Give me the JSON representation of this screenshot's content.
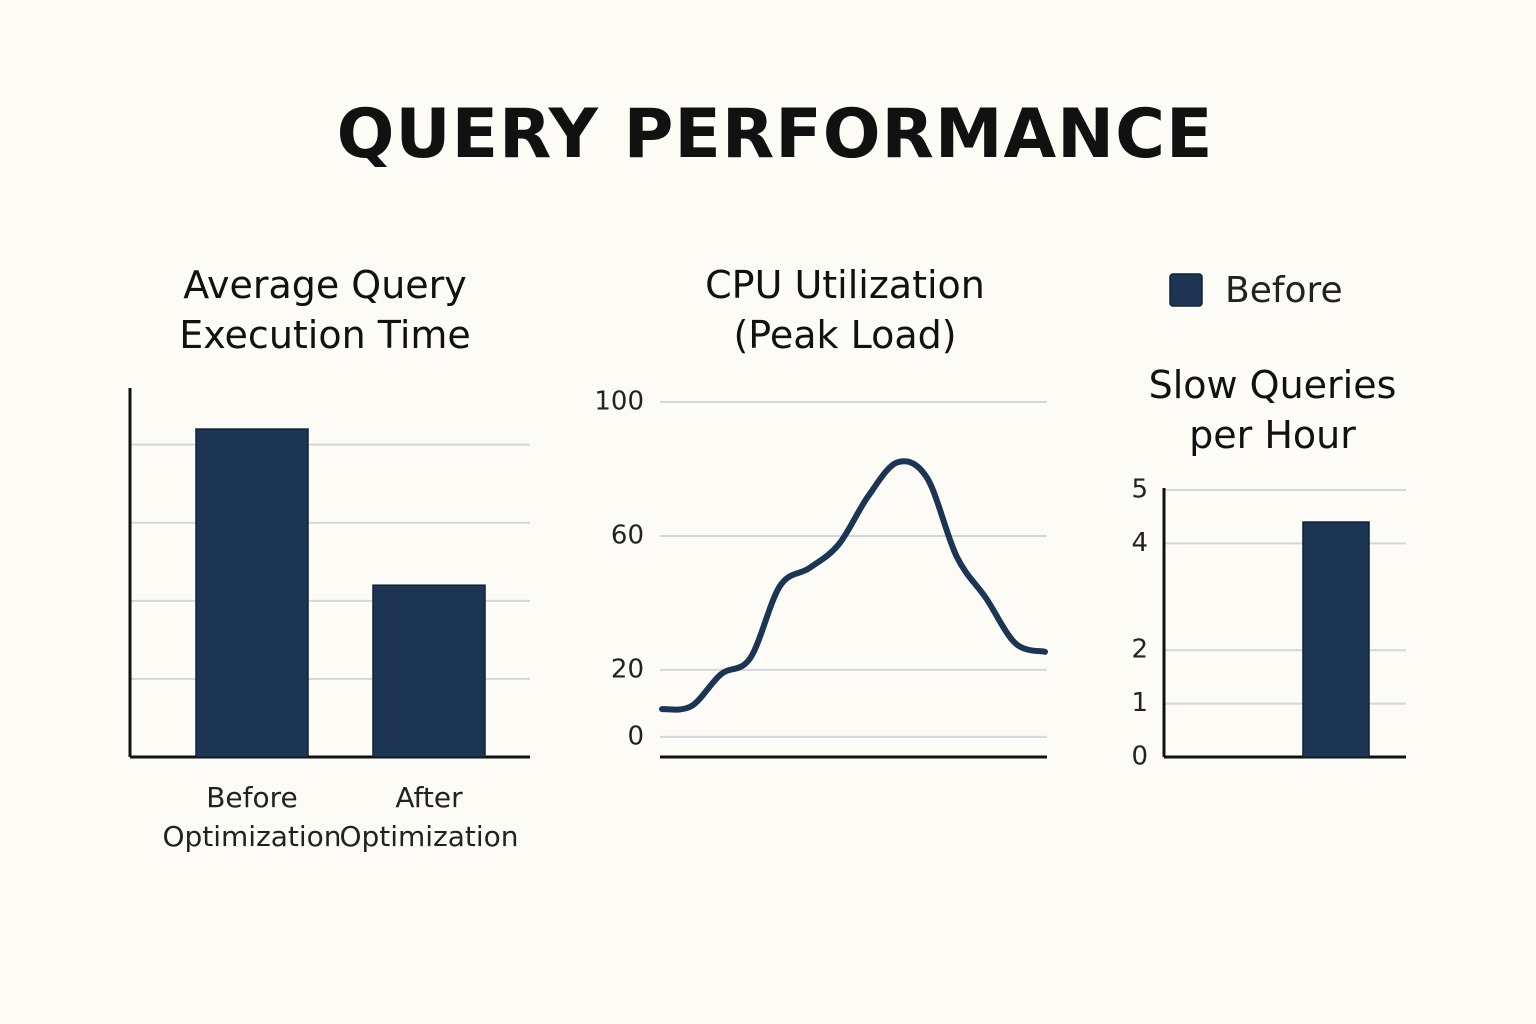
{
  "title": "QUERY PERFORMANCE",
  "chart_data": [
    {
      "type": "bar",
      "title": "Average Query Execution Time",
      "categories": [
        "Before Optimization",
        "After Optimization"
      ],
      "values": [
        4.2,
        2.2
      ],
      "color": "#1b3553",
      "ylim": [
        0,
        4.7
      ],
      "yticks": [
        1,
        2,
        3,
        4
      ],
      "tick_labels": false,
      "grid": true
    },
    {
      "type": "line",
      "title": "CPU Utilization (Peak Load)",
      "categories": [
        null,
        null,
        null,
        null,
        null,
        null,
        null,
        null,
        null,
        null,
        null,
        null,
        null,
        null
      ],
      "values": [
        8.3,
        9.2,
        18.7,
        23.6,
        45,
        50.4,
        57.5,
        71.9,
        82,
        77.3,
        53.9,
        41.4,
        27.9,
        25.4
      ],
      "color": "#1b3553",
      "ylim": [
        -6,
        100
      ],
      "yticks": [
        0,
        20,
        60,
        100
      ],
      "grid": true
    },
    {
      "type": "bar",
      "title": "Slow Queries per Hour",
      "categories": [
        null,
        null
      ],
      "series": [
        {
          "name": "Before",
          "color": "#1b3553",
          "values": [
            null,
            4.4
          ]
        }
      ],
      "ylim": [
        0,
        5
      ],
      "yticks": [
        0,
        1,
        2,
        4,
        5
      ],
      "grid": true,
      "legend": "top"
    }
  ]
}
